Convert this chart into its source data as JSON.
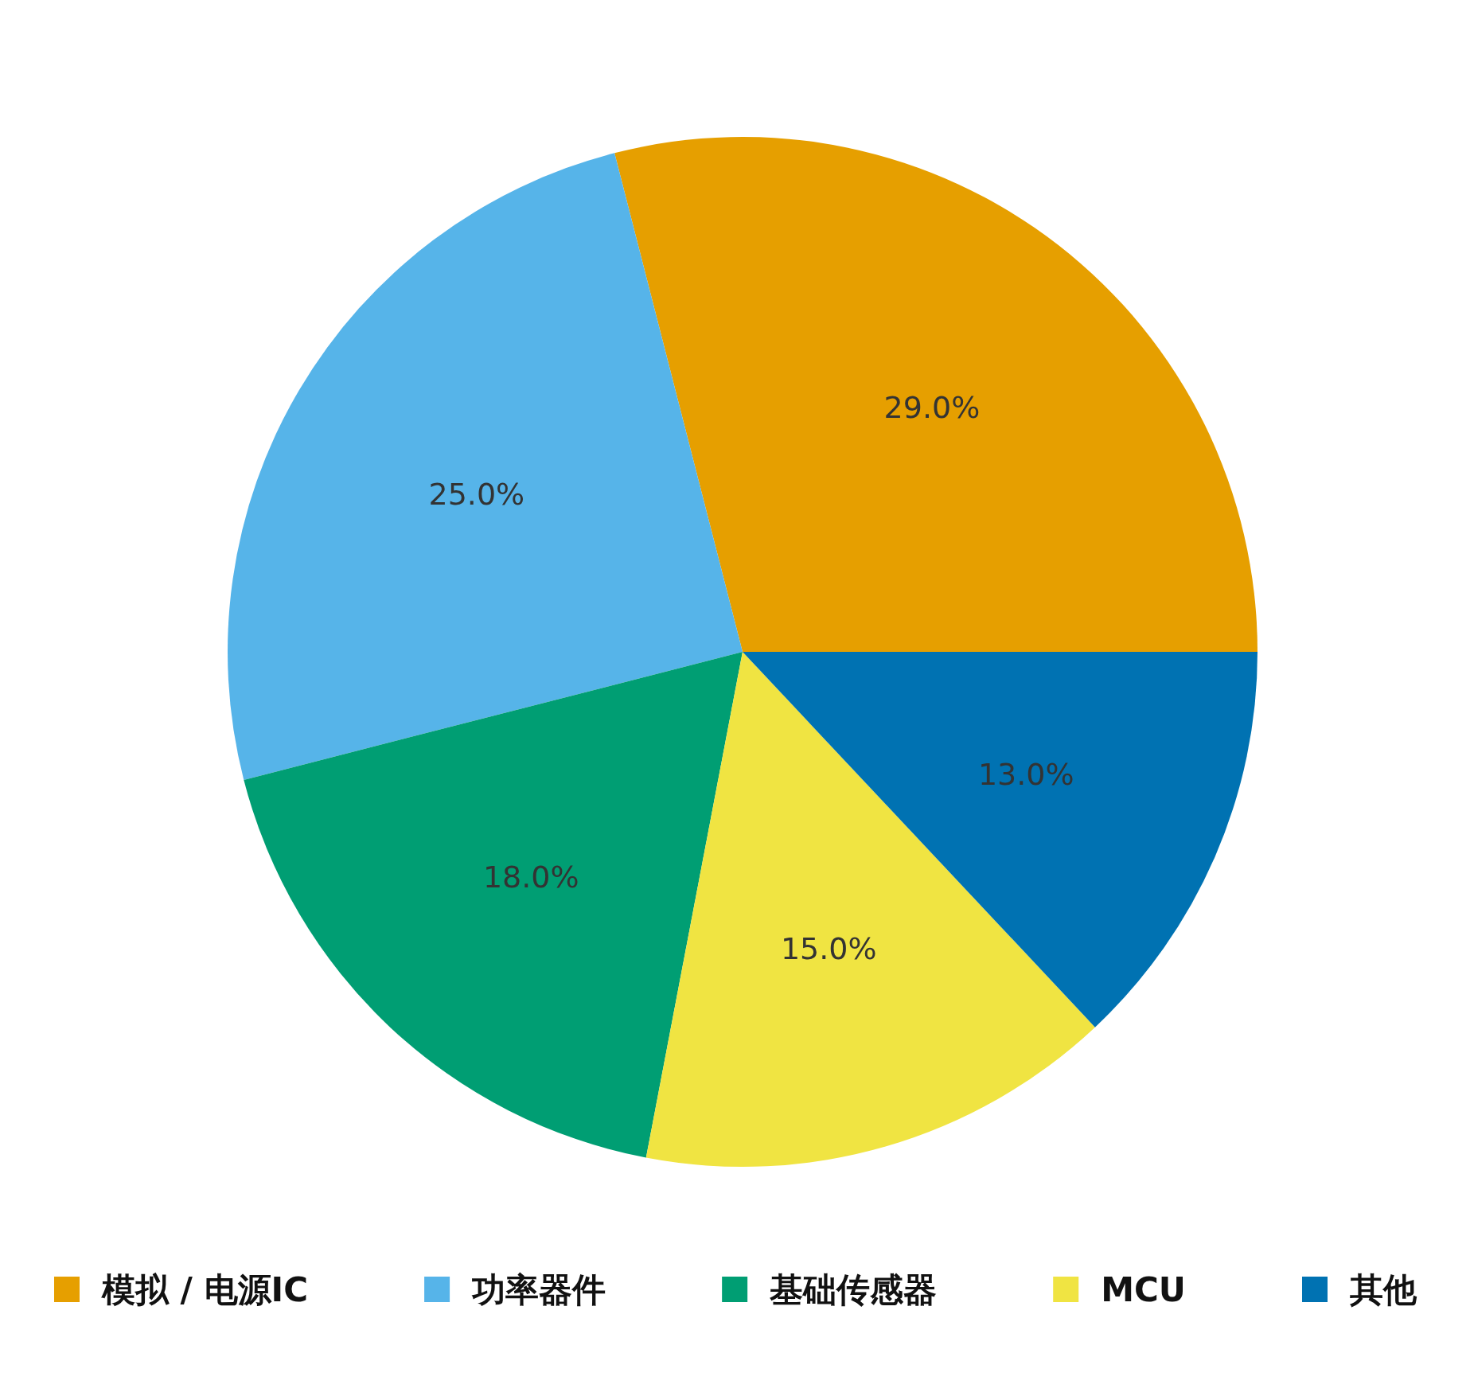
{
  "chart_data": {
    "type": "pie",
    "categories": [
      "模拟 / 电源IC",
      "功率器件",
      "基础传感器",
      "MCU",
      "其他"
    ],
    "values": [
      29,
      25,
      18,
      15,
      13
    ],
    "value_labels": [
      "29.0%",
      "25.0%",
      "18.0%",
      "15.0%",
      "13.0%"
    ],
    "colors": [
      "#e69f00",
      "#56b4e9",
      "#009e73",
      "#f0e442",
      "#0072b2"
    ],
    "legend": "bottom"
  }
}
